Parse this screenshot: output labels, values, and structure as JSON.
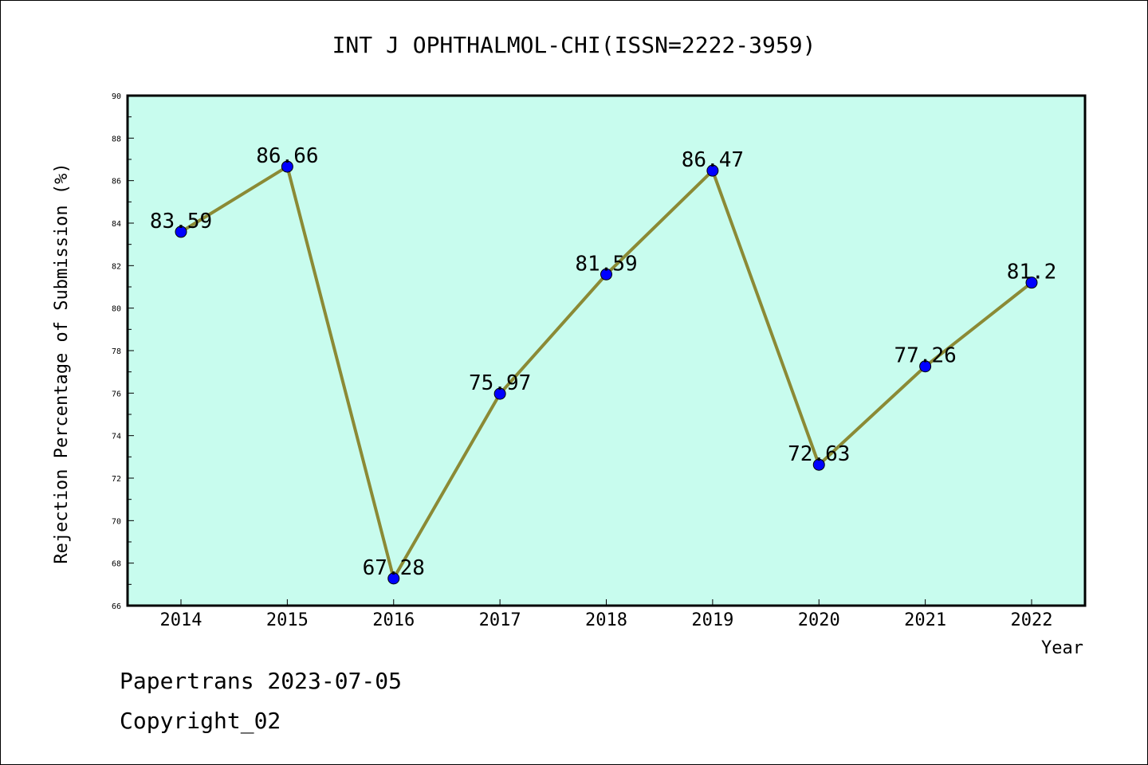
{
  "chart_data": {
    "type": "line",
    "title": "INT J OPHTHALMOL-CHI(ISSN=2222-3959)",
    "xlabel": "Year",
    "ylabel": "Rejection Percentage of Submission (%)",
    "x": [
      "2014",
      "2015",
      "2016",
      "2017",
      "2018",
      "2019",
      "2020",
      "2021",
      "2022"
    ],
    "values": [
      83.59,
      86.66,
      67.28,
      75.97,
      81.59,
      86.47,
      72.63,
      77.26,
      81.2
    ],
    "data_labels": [
      "83.59",
      "86.66",
      "67.28",
      "75.97",
      "81.59",
      "86.47",
      "72.63",
      "77.26",
      "81.2"
    ],
    "ylim": [
      66,
      90
    ],
    "yticks": [
      "66",
      "68",
      "70",
      "72",
      "74",
      "76",
      "78",
      "80",
      "82",
      "84",
      "86",
      "88",
      "90"
    ],
    "grid": false,
    "colors": {
      "plot_background": "#c8fcee",
      "line": "#8b8a35",
      "marker": "#0000ff"
    }
  },
  "footer": {
    "line1": "Papertrans 2023-07-05",
    "line2": "Copyright_02"
  }
}
